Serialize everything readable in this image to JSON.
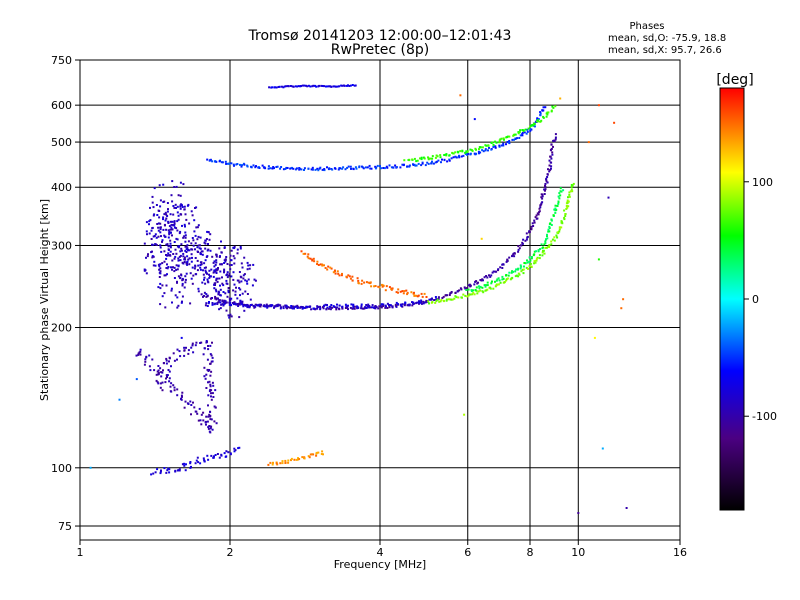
{
  "chart_data": {
    "type": "scatter",
    "title": "Tromsø 20141203 12:00:00–12:01:43",
    "subtitle": "RwPretec (8p)",
    "stats": {
      "heading": "Phases",
      "o_line": "mean, sd,O: -75.9, 18.8",
      "x_line": "mean, sd,X:  95.7, 26.6"
    },
    "xlabel": "Frequency [MHz]",
    "ylabel": "Stationary phase Virtual Height [km]",
    "x_scale": "log",
    "y_scale": "log",
    "xlim": [
      1,
      16
    ],
    "ylim": [
      70,
      750
    ],
    "x_ticks": [
      1,
      2,
      4,
      6,
      8,
      10,
      16
    ],
    "x_tick_labels": [
      "1",
      "2",
      "4",
      "6",
      "8",
      "10",
      "16"
    ],
    "y_ticks": [
      75,
      100,
      200,
      300,
      400,
      500,
      600,
      750
    ],
    "y_tick_labels": [
      "75",
      "100",
      "200",
      "300",
      "400",
      "500",
      "600",
      "750"
    ],
    "grid": true,
    "colorbar": {
      "label": "[deg]",
      "range": [
        -180,
        180
      ],
      "ticks": [
        100,
        0,
        -100
      ],
      "tick_labels": [
        "100",
        "0",
        "-100"
      ],
      "colormap": [
        "#000000",
        "#4b0082",
        "#0000ff",
        "#00ffff",
        "#00ff00",
        "#ffff00",
        "#ff0000"
      ]
    },
    "traces": [
      {
        "desc": "F2 ordinary trace base",
        "phase": -105,
        "spread": 3,
        "points": [
          [
            1.75,
            235
          ],
          [
            2,
            225
          ],
          [
            2.5,
            222
          ],
          [
            3,
            220
          ],
          [
            3.5,
            220
          ],
          [
            4,
            221
          ],
          [
            4.5,
            223
          ],
          [
            5,
            228
          ],
          [
            5.5,
            235
          ],
          [
            6,
            245
          ],
          [
            6.5,
            255
          ],
          [
            7,
            270
          ],
          [
            7.5,
            290
          ],
          [
            8,
            320
          ],
          [
            8.3,
            350
          ],
          [
            8.6,
            400
          ],
          [
            8.8,
            450
          ],
          [
            8.9,
            500
          ],
          [
            9,
            520
          ]
        ]
      },
      {
        "desc": "F2 ordinary trace second",
        "phase": -80,
        "spread": 4,
        "points": [
          [
            1.8,
            226
          ],
          [
            2.2,
            223
          ],
          [
            2.8,
            221
          ],
          [
            3.2,
            222
          ],
          [
            4,
            222
          ],
          [
            4.8,
            226
          ],
          [
            5.2,
            232
          ]
        ]
      },
      {
        "desc": "F2 extraordinary trace",
        "phase": 80,
        "spread": 3,
        "points": [
          [
            5,
            226
          ],
          [
            5.5,
            230
          ],
          [
            6,
            235
          ],
          [
            6.5,
            240
          ],
          [
            7,
            248
          ],
          [
            7.5,
            258
          ],
          [
            8,
            270
          ],
          [
            8.5,
            290
          ],
          [
            9,
            310
          ],
          [
            9.3,
            340
          ],
          [
            9.6,
            380
          ],
          [
            9.8,
            410
          ]
        ]
      },
      {
        "desc": "F2 X trace middle",
        "phase": 40,
        "spread": 3,
        "points": [
          [
            6,
            240
          ],
          [
            6.5,
            246
          ],
          [
            7,
            255
          ],
          [
            7.5,
            265
          ],
          [
            8,
            280
          ],
          [
            8.5,
            300
          ],
          [
            8.8,
            330
          ],
          [
            9,
            360
          ],
          [
            9.3,
            400
          ]
        ]
      },
      {
        "desc": "Orange upper trace",
        "phase": 150,
        "spread": 4,
        "points": [
          [
            2.8,
            290
          ],
          [
            3,
            275
          ],
          [
            3.3,
            262
          ],
          [
            3.6,
            252
          ],
          [
            4,
            245
          ],
          [
            4.3,
            240
          ],
          [
            4.6,
            237
          ],
          [
            5,
            234
          ]
        ]
      },
      {
        "desc": "Multiple-hop trace",
        "phase": -50,
        "spread": 3,
        "points": [
          [
            1.8,
            460
          ],
          [
            2,
            448
          ],
          [
            2.5,
            440
          ],
          [
            3,
            438
          ],
          [
            3.5,
            440
          ],
          [
            4,
            442
          ],
          [
            4.5,
            445
          ],
          [
            5,
            450
          ],
          [
            5.5,
            458
          ],
          [
            6,
            470
          ],
          [
            6.5,
            480
          ],
          [
            7,
            490
          ],
          [
            7.5,
            510
          ],
          [
            8,
            530
          ],
          [
            8.3,
            560
          ],
          [
            8.6,
            600
          ]
        ]
      },
      {
        "desc": "Multiple-hop X trace",
        "phase": 60,
        "spread": 3,
        "points": [
          [
            4.5,
            455
          ],
          [
            5,
            462
          ],
          [
            5.5,
            470
          ],
          [
            6,
            478
          ],
          [
            6.5,
            490
          ],
          [
            7,
            505
          ],
          [
            7.5,
            520
          ],
          [
            8,
            540
          ],
          [
            8.5,
            560
          ],
          [
            9,
            600
          ]
        ]
      },
      {
        "desc": "Top trace",
        "phase": -75,
        "spread": 1,
        "points": [
          [
            2.4,
            655
          ],
          [
            2.8,
            660
          ],
          [
            3.2,
            658
          ],
          [
            3.6,
            662
          ]
        ]
      },
      {
        "desc": "Spread F cloud",
        "phase": -90,
        "spread": 35,
        "points": [
          [
            1.45,
            300
          ],
          [
            1.5,
            360
          ],
          [
            1.55,
            250
          ],
          [
            1.6,
            320
          ],
          [
            1.7,
            280
          ],
          [
            1.8,
            270
          ],
          [
            1.9,
            250
          ],
          [
            2,
            260
          ],
          [
            2.1,
            240
          ]
        ]
      },
      {
        "desc": "E layer trace",
        "phase": -80,
        "spread": 6,
        "points": [
          [
            1.4,
            98
          ],
          [
            1.6,
            100
          ],
          [
            1.8,
            105
          ],
          [
            2,
            108
          ],
          [
            2.1,
            110
          ]
        ]
      },
      {
        "desc": "E layer orange",
        "phase": 140,
        "spread": 3,
        "points": [
          [
            2.4,
            102
          ],
          [
            2.6,
            103
          ],
          [
            2.9,
            106
          ],
          [
            3.1,
            108
          ]
        ]
      },
      {
        "desc": "Low blue clusters",
        "phase": -100,
        "spread": 10,
        "points": [
          [
            1.45,
            150
          ],
          [
            1.5,
            170
          ],
          [
            1.8,
            185
          ],
          [
            1.85,
            120
          ],
          [
            1.3,
            180
          ]
        ]
      }
    ],
    "sparse_points": [
      [
        1.05,
        100,
        -20
      ],
      [
        1.2,
        140,
        -30
      ],
      [
        1.3,
        155,
        -40
      ],
      [
        1.6,
        190,
        -70
      ],
      [
        5.8,
        630,
        150
      ],
      [
        6.2,
        560,
        -60
      ],
      [
        6.4,
        310,
        120
      ],
      [
        5.9,
        130,
        90
      ],
      [
        11,
        600,
        160
      ],
      [
        11.5,
        380,
        -95
      ],
      [
        11.8,
        550,
        160
      ],
      [
        12.3,
        230,
        150
      ],
      [
        12.2,
        220,
        150
      ],
      [
        10,
        80,
        -110
      ],
      [
        12.5,
        82,
        -100
      ],
      [
        11,
        280,
        60
      ],
      [
        10.8,
        190,
        110
      ],
      [
        11.2,
        110,
        -20
      ],
      [
        10.5,
        500,
        150
      ],
      [
        9.2,
        620,
        130
      ]
    ]
  }
}
